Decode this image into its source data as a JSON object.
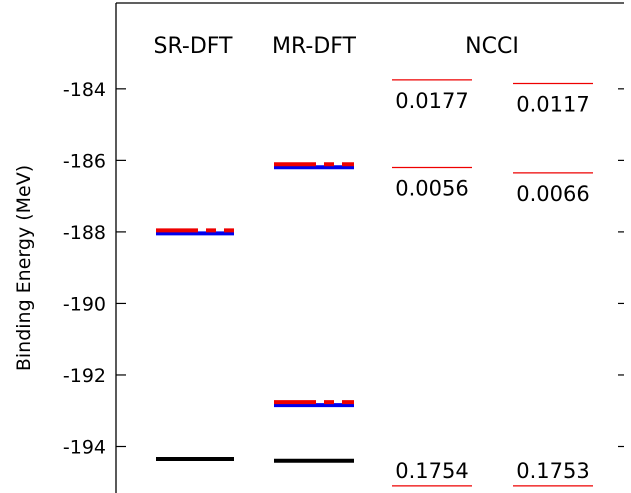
{
  "chart_data": {
    "type": "level-diagram",
    "ylabel": "Binding Energy (MeV)",
    "ylim": [
      -195.3,
      -181.6
    ],
    "yticks": [
      -184,
      -186,
      -188,
      -190,
      -192,
      -194
    ],
    "columns": [
      {
        "id": "sr-dft",
        "title": "SR-DFT"
      },
      {
        "id": "mr-dft",
        "title": "MR-DFT"
      },
      {
        "id": "ncci",
        "title": "NCCI"
      }
    ],
    "dft_levels": [
      {
        "column": "SR-DFT",
        "energy": -188.0,
        "style": "blue-red-dashed"
      },
      {
        "column": "SR-DFT",
        "energy": -194.35,
        "style": "black"
      },
      {
        "column": "MR-DFT",
        "energy": -186.15,
        "style": "blue-red-dashed"
      },
      {
        "column": "MR-DFT",
        "energy": -192.8,
        "style": "blue-red-dashed"
      },
      {
        "column": "MR-DFT",
        "energy": -194.4,
        "style": "black"
      }
    ],
    "ncci_levels": [
      {
        "sub": 1,
        "energy": -183.75,
        "label": "0.0177"
      },
      {
        "sub": 2,
        "energy": -183.85,
        "label": "0.0117"
      },
      {
        "sub": 1,
        "energy": -186.2,
        "label": "0.0056"
      },
      {
        "sub": 2,
        "energy": -186.35,
        "label": "0.0066"
      },
      {
        "sub": 1,
        "energy": -195.1,
        "label": "0.1754"
      },
      {
        "sub": 2,
        "energy": -195.1,
        "label": "0.1753"
      }
    ],
    "colors": {
      "blue": "#0000ee",
      "red": "#ee0000",
      "black": "#000000",
      "ncci": "#ee0000"
    }
  }
}
